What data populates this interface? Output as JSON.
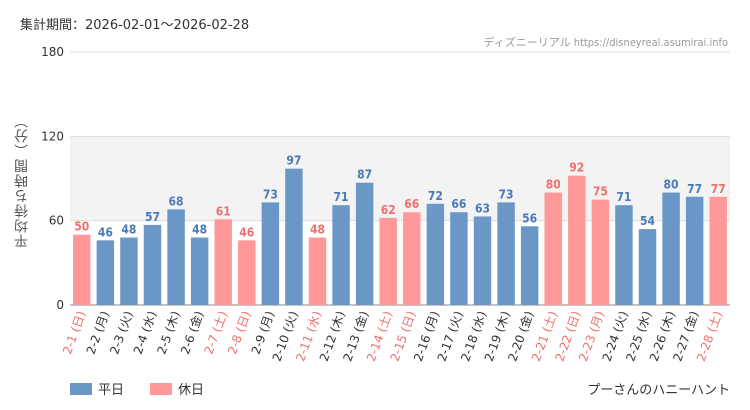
{
  "header": {
    "period": "集計期間：2026-02-01～2026-02-28",
    "credit": "ディズニーリアル https://disneyreal.asumirai.info"
  },
  "attraction": "プーさんのハニーハント",
  "legend": [
    {
      "label": "平日",
      "color": "#6a97c6"
    },
    {
      "label": "休日",
      "color": "#ff9999"
    }
  ],
  "colors": {
    "weekday_bar": "#6a97c6",
    "holiday_bar": "#ff9999",
    "weekday_text": "#4a7ab8",
    "holiday_text": "#ee6f6f",
    "band": "#f3f3f3"
  },
  "chart_data": {
    "type": "bar",
    "ylabel": "平均待ち時間（分）",
    "ylim": [
      0,
      180
    ],
    "yticks": [
      0,
      60,
      120,
      180
    ],
    "shaded_band": [
      60,
      120
    ],
    "categories": [
      "2-1 (日)",
      "2-2 (月)",
      "2-3 (火)",
      "2-4 (水)",
      "2-5 (木)",
      "2-6 (金)",
      "2-7 (土)",
      "2-8 (日)",
      "2-9 (月)",
      "2-10 (火)",
      "2-11 (水)",
      "2-12 (木)",
      "2-13 (金)",
      "2-14 (土)",
      "2-15 (日)",
      "2-16 (月)",
      "2-17 (火)",
      "2-18 (水)",
      "2-19 (木)",
      "2-20 (金)",
      "2-21 (土)",
      "2-22 (日)",
      "2-23 (月)",
      "2-24 (火)",
      "2-25 (水)",
      "2-26 (木)",
      "2-27 (金)",
      "2-28 (土)"
    ],
    "values": [
      50,
      46,
      48,
      57,
      68,
      48,
      61,
      46,
      73,
      97,
      48,
      71,
      87,
      62,
      66,
      72,
      66,
      63,
      73,
      56,
      80,
      92,
      75,
      71,
      54,
      80,
      77,
      77
    ],
    "holiday": [
      true,
      false,
      false,
      false,
      false,
      false,
      true,
      true,
      false,
      false,
      true,
      false,
      false,
      true,
      true,
      false,
      false,
      false,
      false,
      false,
      true,
      true,
      true,
      false,
      false,
      false,
      false,
      true
    ]
  }
}
